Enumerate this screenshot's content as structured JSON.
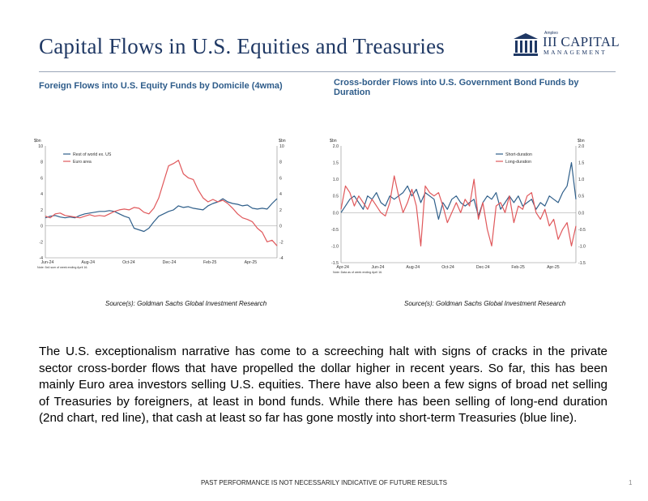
{
  "page": {
    "title": "Capital Flows in U.S. Equities and Treasuries",
    "logo": {
      "small": "Ampleo",
      "main": "III CAPITAL",
      "sub": "MANAGEMENT",
      "icon": "columns-building-icon"
    },
    "body_text": "The U.S. exceptionalism narrative has come to a screeching halt with signs of cracks in the private sector cross-border flows that have propelled the dollar higher in recent years. So far, this has been mainly Euro area investors selling U.S. equities. There have also been a few signs of broad net selling of Treasuries by foreigners, at least in bond funds. While there has been selling of long-end duration (2nd chart, red line), that cash at least so far has gone mostly into short-term Treasuries (blue line).",
    "footer": "PAST PERFORMANCE IS NOT NECESSARILY INDICATIVE OF FUTURE RESULTS",
    "page_number": "1",
    "colors": {
      "title": "#1f3864",
      "chart_title": "#2e5c8a",
      "blue_series": "#2f5f8a",
      "red_series": "#e0585b"
    }
  },
  "chart_data": [
    {
      "type": "line",
      "title": "Foreign Flows into U.S. Equity Funds by Domicile (4wma)",
      "source": "Source(s): Goldman Sachs Global Investment Research",
      "ylabel_left": "$bn",
      "ylabel_right": "$bn",
      "ylim": [
        -4,
        10
      ],
      "yticks": [
        "-4",
        "-2",
        "0",
        "2",
        "4",
        "6",
        "8",
        "10"
      ],
      "xticks": [
        "Jun-24",
        "Aug-24",
        "Oct-24",
        "Dec-24",
        "Feb-25",
        "Apr-25"
      ],
      "note": "Note: 5x4 sum of week ending April 16.",
      "legend_position": "top-left",
      "grid": false,
      "series": [
        {
          "name": "Rest of world ex. US",
          "color": "#2f5f8a",
          "x": [
            0,
            1,
            2,
            3,
            4,
            5,
            6,
            7,
            8,
            9,
            10,
            11,
            12,
            13,
            14,
            15,
            16,
            17,
            18,
            19,
            20,
            21,
            22,
            23,
            24,
            25,
            26,
            27,
            28,
            29,
            30,
            31,
            32,
            33,
            34,
            35,
            36,
            37,
            38,
            39,
            40,
            41,
            42,
            43,
            44,
            45,
            46,
            47
          ],
          "values": [
            1.0,
            1.2,
            1.3,
            1.1,
            1.0,
            1.1,
            1.0,
            1.3,
            1.5,
            1.6,
            1.7,
            1.8,
            1.8,
            1.9,
            1.8,
            1.5,
            1.2,
            1.0,
            -0.3,
            -0.5,
            -0.7,
            -0.3,
            0.5,
            1.2,
            1.5,
            1.8,
            2.0,
            2.5,
            2.3,
            2.4,
            2.2,
            2.1,
            2.0,
            2.5,
            2.8,
            3.0,
            3.4,
            3.0,
            2.8,
            2.7,
            2.5,
            2.6,
            2.2,
            2.1,
            2.2,
            2.1,
            2.8,
            3.4
          ]
        },
        {
          "name": "Euro area",
          "color": "#e0585b",
          "x": [
            0,
            1,
            2,
            3,
            4,
            5,
            6,
            7,
            8,
            9,
            10,
            11,
            12,
            13,
            14,
            15,
            16,
            17,
            18,
            19,
            20,
            21,
            22,
            23,
            24,
            25,
            26,
            27,
            28,
            29,
            30,
            31,
            32,
            33,
            34,
            35,
            36,
            37,
            38,
            39,
            40,
            41,
            42,
            43,
            44,
            45,
            46,
            47
          ],
          "values": [
            1.2,
            1.0,
            1.5,
            1.6,
            1.3,
            1.2,
            1.1,
            1.0,
            1.2,
            1.4,
            1.2,
            1.3,
            1.2,
            1.5,
            1.8,
            2.0,
            2.1,
            2.0,
            2.3,
            2.2,
            1.7,
            1.5,
            2.2,
            3.5,
            5.5,
            7.5,
            7.8,
            8.2,
            6.5,
            6.0,
            5.8,
            4.5,
            3.5,
            3.0,
            3.3,
            3.0,
            3.2,
            2.8,
            2.2,
            1.5,
            1.0,
            0.8,
            0.5,
            -0.3,
            -0.8,
            -2.0,
            -1.8,
            -2.5
          ]
        }
      ]
    },
    {
      "type": "line",
      "title": "Cross-border Flows into U.S. Government Bond Funds by Duration",
      "source": "Source(s): Goldman Sachs Global Investment Research",
      "ylabel_left": "$bn",
      "ylabel_right": "$bn",
      "ylim": [
        -1.5,
        2.0
      ],
      "yticks": [
        "-1.5",
        "-1.0",
        "-0.5",
        "0.0",
        "0.5",
        "1.0",
        "1.5",
        "2.0"
      ],
      "xticks": [
        "Apr-24",
        "Jun-24",
        "Aug-24",
        "Oct-24",
        "Dec-24",
        "Feb-25",
        "Apr-25"
      ],
      "note": "Note: Data as of week ending April 16.",
      "legend_position": "top-right",
      "grid": false,
      "series": [
        {
          "name": "Short-duration",
          "color": "#2f5f8a",
          "x": [
            0,
            1,
            2,
            3,
            4,
            5,
            6,
            7,
            8,
            9,
            10,
            11,
            12,
            13,
            14,
            15,
            16,
            17,
            18,
            19,
            20,
            21,
            22,
            23,
            24,
            25,
            26,
            27,
            28,
            29,
            30,
            31,
            32,
            33,
            34,
            35,
            36,
            37,
            38,
            39,
            40,
            41,
            42,
            43,
            44,
            45,
            46,
            47,
            48,
            49,
            50,
            51,
            52,
            53
          ],
          "values": [
            0.0,
            0.2,
            0.4,
            0.5,
            0.3,
            0.1,
            0.5,
            0.4,
            0.6,
            0.3,
            0.2,
            0.5,
            0.4,
            0.5,
            0.6,
            0.8,
            0.5,
            0.7,
            0.3,
            0.6,
            0.5,
            0.4,
            -0.2,
            0.3,
            0.1,
            0.4,
            0.5,
            0.3,
            0.2,
            0.3,
            0.4,
            -0.1,
            0.3,
            0.5,
            0.4,
            0.6,
            0.1,
            0.3,
            0.5,
            0.3,
            0.5,
            0.2,
            0.3,
            0.4,
            0.1,
            0.3,
            0.2,
            0.5,
            0.4,
            0.3,
            0.6,
            0.8,
            1.5,
            0.4
          ]
        },
        {
          "name": "Long-duration",
          "color": "#e0585b",
          "x": [
            0,
            1,
            2,
            3,
            4,
            5,
            6,
            7,
            8,
            9,
            10,
            11,
            12,
            13,
            14,
            15,
            16,
            17,
            18,
            19,
            20,
            21,
            22,
            23,
            24,
            25,
            26,
            27,
            28,
            29,
            30,
            31,
            32,
            33,
            34,
            35,
            36,
            37,
            38,
            39,
            40,
            41,
            42,
            43,
            44,
            45,
            46,
            47,
            48,
            49,
            50,
            51,
            52,
            53
          ],
          "values": [
            0.1,
            0.8,
            0.6,
            0.2,
            0.5,
            0.3,
            0.1,
            0.4,
            0.2,
            0.0,
            -0.1,
            0.3,
            1.1,
            0.5,
            0.0,
            0.3,
            0.7,
            0.2,
            -1.0,
            0.8,
            0.6,
            0.5,
            0.6,
            0.2,
            -0.3,
            0.0,
            0.3,
            0.0,
            0.4,
            0.2,
            1.0,
            -0.2,
            0.3,
            -0.5,
            -1.0,
            0.2,
            0.3,
            0.0,
            0.5,
            -0.3,
            0.2,
            0.1,
            0.5,
            0.6,
            0.0,
            -0.2,
            0.1,
            -0.4,
            -0.2,
            -0.8,
            -0.5,
            -0.3,
            -1.0,
            -0.4
          ]
        }
      ]
    }
  ]
}
